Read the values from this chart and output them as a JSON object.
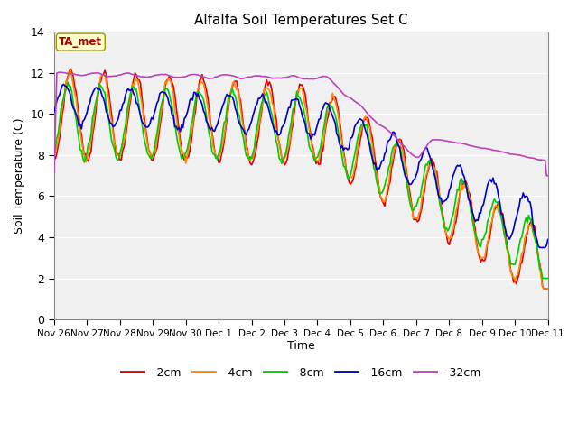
{
  "title": "Alfalfa Soil Temperatures Set C",
  "ylabel": "Soil Temperature (C)",
  "xlabel": "Time",
  "ylim": [
    0,
    14
  ],
  "xlim": [
    0,
    360
  ],
  "annotation_text": "TA_met",
  "fig_bg_color": "#ffffff",
  "plot_bg_color": "#f0f0f0",
  "grid_color": "#ffffff",
  "series": {
    "-2cm": {
      "color": "#dd0000",
      "lw": 1.2
    },
    "-4cm": {
      "color": "#ff8800",
      "lw": 1.2
    },
    "-8cm": {
      "color": "#00cc00",
      "lw": 1.2
    },
    "-16cm": {
      "color": "#0000cc",
      "lw": 1.2
    },
    "-32cm": {
      "color": "#bb44bb",
      "lw": 1.2
    }
  },
  "xtick_labels": [
    "Nov 26",
    "Nov 27",
    "Nov 28",
    "Nov 29",
    "Nov 30",
    "Dec 1",
    "Dec 2",
    "Dec 3",
    "Dec 4",
    "Dec 5",
    "Dec 6",
    "Dec 7",
    "Dec 8",
    "Dec 9",
    "Dec 10",
    "Dec 11"
  ],
  "xtick_positions": [
    0,
    24,
    48,
    72,
    96,
    120,
    144,
    168,
    192,
    216,
    240,
    264,
    288,
    312,
    336,
    360
  ],
  "ytick_labels": [
    "0",
    "2",
    "4",
    "6",
    "8",
    "10",
    "12",
    "14"
  ],
  "ytick_positions": [
    0,
    2,
    4,
    6,
    8,
    10,
    12,
    14
  ]
}
